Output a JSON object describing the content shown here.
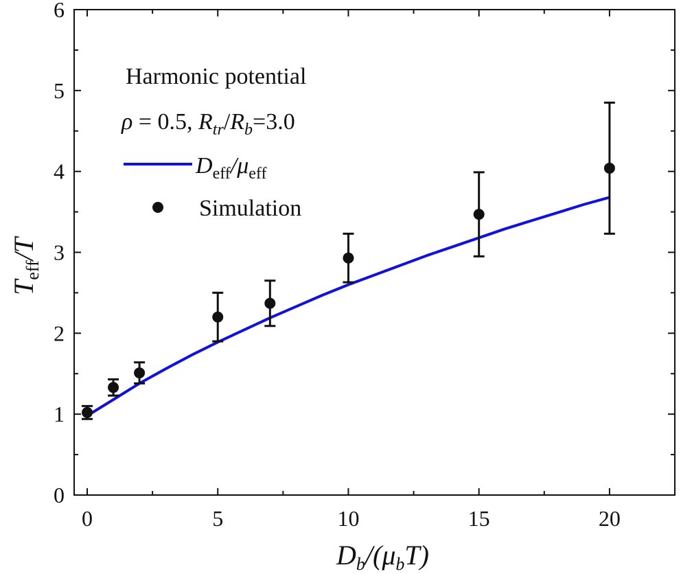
{
  "chart_data": {
    "type": "scatter",
    "xlim": [
      -0.5,
      22.5
    ],
    "ylim": [
      0,
      6
    ],
    "xticks": [
      0,
      5,
      10,
      15,
      20
    ],
    "xtick_labels": [
      "0",
      "5",
      "10",
      "15",
      "20"
    ],
    "yticks": [
      0,
      1,
      2,
      3,
      4,
      5,
      6
    ],
    "ytick_labels": [
      "0",
      "1",
      "2",
      "3",
      "4",
      "5",
      "6"
    ],
    "xlabel": {
      "main": "D",
      "sub": "b",
      "rest_open": "/(μ",
      "rest_sub": "b",
      "rest_close": "T)"
    },
    "ylabel": {
      "main": "T",
      "sub": "eff",
      "rest": "/T"
    },
    "annotations": {
      "line1": "Harmonic potential",
      "line2": {
        "rho": "ρ",
        "rho_val": " = 0.5, ",
        "R1": "R",
        "R1_sub": "tr",
        "slash": "/",
        "R2": "R",
        "R2_sub": "b",
        "val": "=3.0"
      }
    },
    "legend": {
      "placement": "top-left",
      "line_label": {
        "main": "D",
        "sub": "eff",
        "slash": "/μ",
        "sub2": "eff"
      },
      "points_label": "Simulation"
    },
    "grid": false,
    "series": [
      {
        "kind": "line",
        "color": "#1010e0",
        "x": [
          0,
          1,
          2,
          3,
          4,
          5,
          6,
          7,
          8,
          9,
          10,
          11,
          12,
          13,
          14,
          15,
          16,
          17,
          18,
          19,
          20
        ],
        "y": [
          0.98,
          1.18,
          1.38,
          1.56,
          1.73,
          1.89,
          2.04,
          2.19,
          2.33,
          2.47,
          2.6,
          2.72,
          2.84,
          2.96,
          3.07,
          3.18,
          3.29,
          3.39,
          3.49,
          3.59,
          3.68
        ]
      },
      {
        "kind": "scatter_errorbar",
        "color": "#111111",
        "x": [
          0,
          1,
          2,
          5,
          7,
          10,
          15,
          20
        ],
        "y": [
          1.02,
          1.33,
          1.51,
          2.2,
          2.37,
          2.93,
          3.47,
          4.04
        ],
        "err": [
          0.08,
          0.1,
          0.13,
          0.3,
          0.28,
          0.3,
          0.52,
          0.81
        ]
      }
    ]
  }
}
